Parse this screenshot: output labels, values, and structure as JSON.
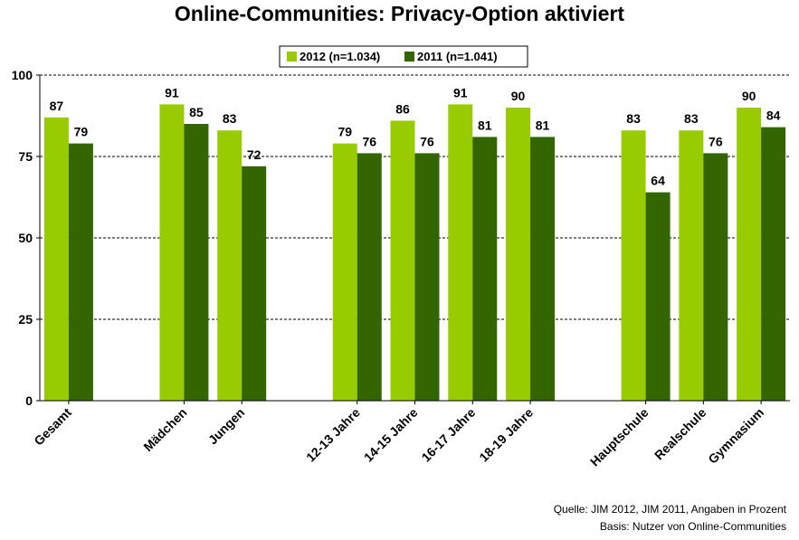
{
  "chart_data": {
    "type": "bar",
    "title": "Online-Communities: Privacy-Option aktiviert",
    "categories": [
      "Gesamt",
      "Mädchen",
      "Jungen",
      "12-13 Jahre",
      "14-15 Jahre",
      "16-17 Jahre",
      "18-19 Jahre",
      "Hauptschule",
      "Realschule",
      "Gymnasium"
    ],
    "groups": [
      [
        "Gesamt"
      ],
      [
        "Mädchen",
        "Jungen"
      ],
      [
        "12-13 Jahre",
        "14-15 Jahre",
        "16-17 Jahre",
        "18-19 Jahre"
      ],
      [
        "Hauptschule",
        "Realschule",
        "Gymnasium"
      ]
    ],
    "series": [
      {
        "name": "2012 (n=1.034)",
        "color": "#99cc00",
        "values": [
          87,
          91,
          83,
          79,
          86,
          91,
          90,
          83,
          83,
          90
        ]
      },
      {
        "name": "2011 (n=1.041)",
        "color": "#336600",
        "values": [
          79,
          85,
          72,
          76,
          76,
          81,
          81,
          64,
          76,
          84
        ]
      }
    ],
    "yticks": [
      0,
      25,
      50,
      75,
      100
    ],
    "ylim": [
      0,
      100
    ],
    "grid": "dashed horizontal",
    "legend_position": "top-center",
    "xlabel": "",
    "ylabel": ""
  },
  "footnotes": {
    "source": "Quelle: JIM 2012, JIM 2011, Angaben in Prozent",
    "basis": "Basis: Nutzer von Online-Communities"
  }
}
